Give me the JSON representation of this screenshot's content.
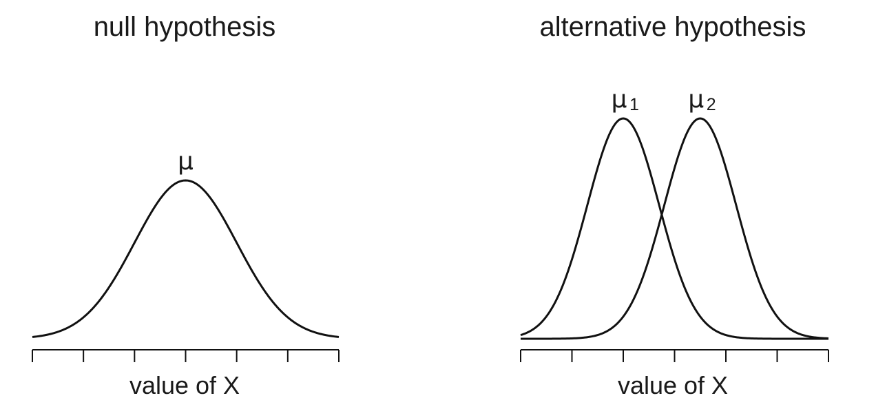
{
  "chart_data": [
    {
      "type": "line",
      "title": "null hypothesis",
      "xlabel": "value of X",
      "ylabel": "",
      "xlim": [
        -3,
        3
      ],
      "ticks": [
        -3,
        -2,
        -1,
        0,
        1,
        2,
        3
      ],
      "grid": false,
      "series": [
        {
          "mean": 0,
          "sd": 1,
          "label": "μ",
          "label_sub": ""
        }
      ]
    },
    {
      "type": "line",
      "title": "alternative hypothesis",
      "xlabel": "value of X",
      "ylabel": "",
      "xlim": [
        -3,
        3
      ],
      "ticks": [
        -3,
        -2,
        -1,
        0,
        1,
        2,
        3
      ],
      "grid": false,
      "series": [
        {
          "mean": -1,
          "sd": 0.7,
          "label": "μ",
          "label_sub": "1"
        },
        {
          "mean": 0.5,
          "sd": 0.7,
          "label": "μ",
          "label_sub": "2"
        }
      ]
    }
  ]
}
